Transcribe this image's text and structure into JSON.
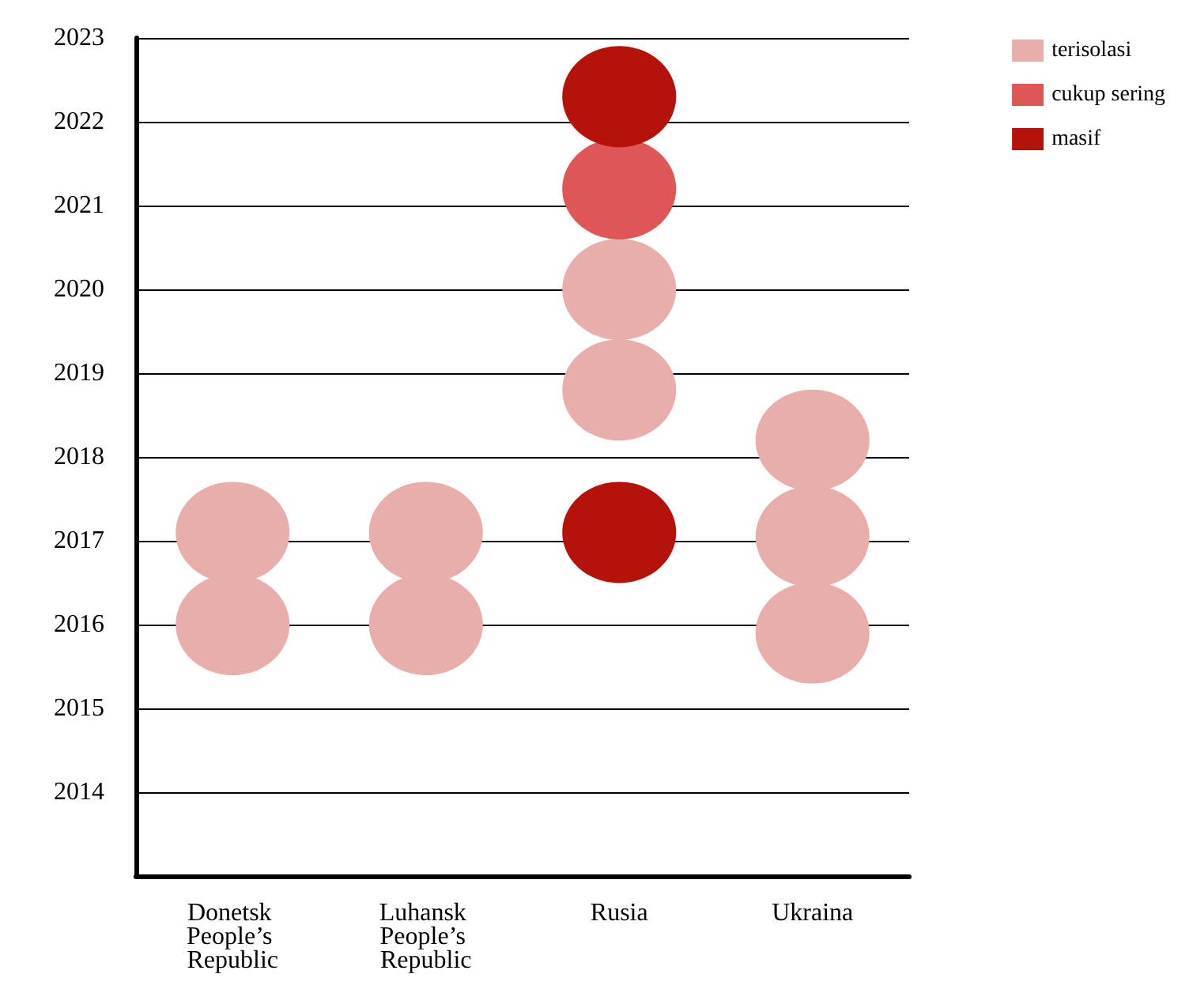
{
  "chart_data": {
    "type": "scatter",
    "categories": [
      "Donetsk People’s Republic",
      "Luhansk People’s Republic",
      "Rusia",
      "Ukraina"
    ],
    "series": [
      {
        "name": "terisolasi",
        "color": "#e8aeab",
        "x": [
          "Donetsk People’s Republic",
          "Donetsk People’s Republic",
          "Luhansk People’s Republic",
          "Luhansk People’s Republic",
          "Rusia",
          "Rusia",
          "Ukraina",
          "Ukraina",
          "Ukraina"
        ],
        "values": [
          2017.1,
          2016.0,
          2017.1,
          2016.0,
          2020.0,
          2018.8,
          2018.2,
          2017.05,
          2015.9
        ]
      },
      {
        "name": "cukup sering",
        "color": "#de5656",
        "x": [
          "Rusia"
        ],
        "values": [
          2021.2
        ]
      },
      {
        "name": "masif",
        "color": "#b5120c",
        "x": [
          "Rusia",
          "Rusia"
        ],
        "values": [
          2022.3,
          2017.1
        ]
      }
    ],
    "ylim": [
      2013,
      2023
    ],
    "yticks": [
      2014,
      2015,
      2016,
      2017,
      2018,
      2019,
      2020,
      2021,
      2022,
      2023
    ],
    "grid": "y",
    "legend": "top right",
    "marker": "circle"
  }
}
